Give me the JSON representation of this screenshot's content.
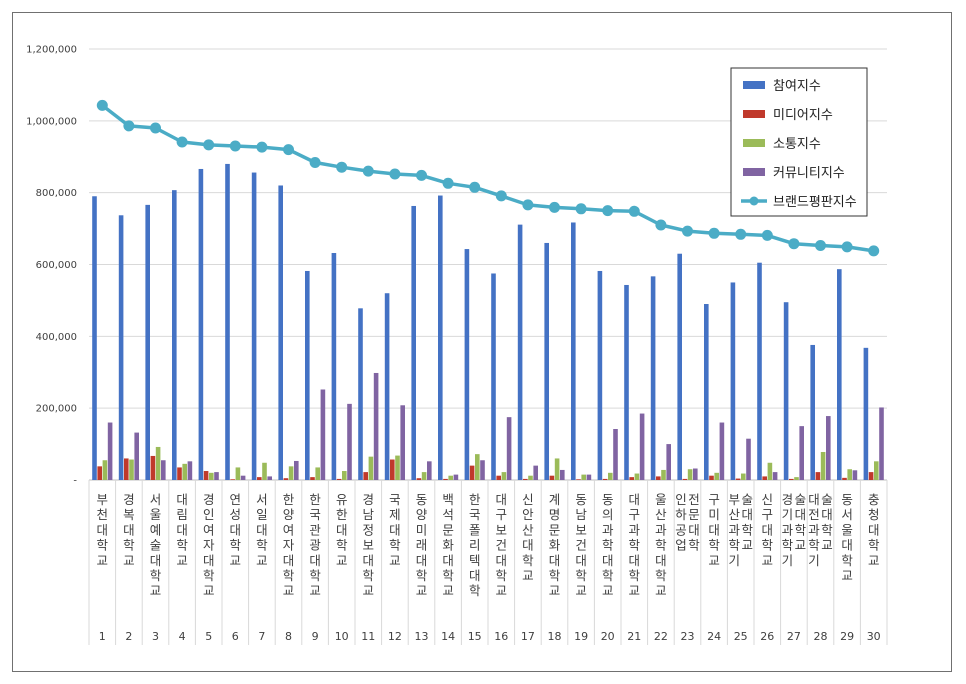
{
  "chart_data": {
    "type": "bar",
    "title": "",
    "xlabel": "",
    "ylabel": "",
    "ylim": [
      0,
      1200000
    ],
    "ytick_labels": [
      "-",
      "200,000",
      "400,000",
      "600,000",
      "800,000",
      "1,000,000",
      "1,200,000"
    ],
    "grid": true,
    "legend_position": "top-right",
    "rank_labels": [
      "1",
      "2",
      "3",
      "4",
      "5",
      "6",
      "7",
      "8",
      "9",
      "10",
      "11",
      "12",
      "13",
      "14",
      "15",
      "16",
      "17",
      "18",
      "19",
      "20",
      "21",
      "22",
      "23",
      "24",
      "25",
      "26",
      "27",
      "28",
      "29",
      "30"
    ],
    "categories": [
      "부천대학교",
      "경복대학교",
      "서울예술대학교",
      "대림대학교",
      "경인여자대학교",
      "연성대학교",
      "서일대학교",
      "한양여자대학교",
      "한국관광대학교",
      "유한대학교",
      "경남정보대학교",
      "국제대학교",
      "동양미래대학교",
      "백석문화대학교",
      "한국폴리텍대학",
      "대구보건대학교",
      "신안산대학교",
      "계명문화대학교",
      "동남보건대학교",
      "동의과학대학교",
      "대구과학대학교",
      "울산과학대학교",
      "인하공업전문대학",
      "구미대학교",
      "부산과학기술대학교",
      "신구대학교",
      "경기과학기술대학교",
      "대전과학기술대학교",
      "동서울대학교",
      "충청대학교"
    ],
    "series": [
      {
        "name": "참여지수",
        "color": "#4472C4",
        "kind": "bar",
        "values": [
          790000,
          737000,
          766000,
          807000,
          866000,
          880000,
          856000,
          820000,
          582000,
          632000,
          478000,
          520000,
          763000,
          792000,
          643000,
          575000,
          711000,
          660000,
          717000,
          582000,
          543000,
          567000,
          630000,
          490000,
          550000,
          605000,
          495000,
          376000,
          587000,
          368000
        ]
      },
      {
        "name": "미디어지수",
        "color": "#C0392B",
        "kind": "bar",
        "values": [
          38000,
          60000,
          67000,
          35000,
          25000,
          2000,
          8000,
          5000,
          8000,
          3000,
          22000,
          57000,
          5000,
          3000,
          40000,
          12000,
          3000,
          12000,
          2000,
          3000,
          8000,
          10000,
          3000,
          12000,
          4000,
          10000,
          3000,
          22000,
          6000,
          22000
        ]
      },
      {
        "name": "소통지수",
        "color": "#9BBB59",
        "kind": "bar",
        "values": [
          55000,
          57000,
          92000,
          45000,
          20000,
          35000,
          48000,
          38000,
          35000,
          25000,
          65000,
          68000,
          22000,
          12000,
          72000,
          22000,
          12000,
          60000,
          15000,
          20000,
          18000,
          28000,
          30000,
          20000,
          18000,
          48000,
          8000,
          78000,
          30000,
          52000
        ]
      },
      {
        "name": "커뮤니티지수",
        "color": "#8064A2",
        "kind": "bar",
        "values": [
          160000,
          132000,
          55000,
          52000,
          22000,
          12000,
          10000,
          53000,
          252000,
          212000,
          298000,
          208000,
          52000,
          15000,
          55000,
          175000,
          40000,
          28000,
          15000,
          142000,
          185000,
          100000,
          32000,
          160000,
          115000,
          22000,
          150000,
          178000,
          27000,
          202000
        ]
      },
      {
        "name": "브랜드평판지수",
        "color": "#4BACC6",
        "kind": "line",
        "values": [
          1043000,
          986000,
          980000,
          941000,
          933000,
          930000,
          927000,
          920000,
          884000,
          871000,
          860000,
          852000,
          848000,
          826000,
          815000,
          791000,
          766000,
          759000,
          755000,
          750000,
          748000,
          710000,
          693000,
          687000,
          684000,
          681000,
          658000,
          653000,
          649000,
          638000
        ]
      }
    ]
  }
}
